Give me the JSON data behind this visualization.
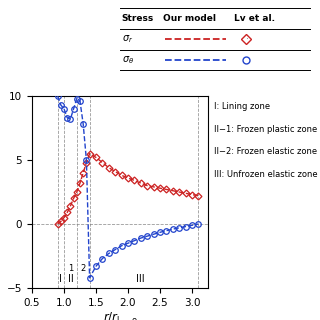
{
  "xlim": [
    0.5,
    3.25
  ],
  "ylim": [
    -5,
    10
  ],
  "yticks": [
    -5,
    0,
    5,
    10
  ],
  "xticks": [
    0.5,
    1.0,
    1.5,
    2.0,
    2.5,
    3.0
  ],
  "sigma_r_x": [
    0.9,
    0.95,
    1.0,
    1.05,
    1.1,
    1.15,
    1.2,
    1.25,
    1.3,
    1.35,
    1.4,
    1.5,
    1.6,
    1.7,
    1.8,
    1.9,
    2.0,
    2.1,
    2.2,
    2.3,
    2.4,
    2.5,
    2.6,
    2.7,
    2.8,
    2.9,
    3.0,
    3.1
  ],
  "sigma_r_y": [
    0.0,
    0.2,
    0.5,
    0.9,
    1.4,
    2.0,
    2.5,
    3.2,
    4.0,
    4.8,
    5.5,
    5.2,
    4.8,
    4.4,
    4.1,
    3.8,
    3.6,
    3.4,
    3.2,
    3.0,
    2.9,
    2.8,
    2.7,
    2.6,
    2.5,
    2.4,
    2.3,
    2.2
  ],
  "sigma_t_x": [
    0.9,
    0.95,
    1.0,
    1.05,
    1.1,
    1.15,
    1.2,
    1.25,
    1.3,
    1.35,
    1.4,
    1.5,
    1.6,
    1.7,
    1.8,
    1.9,
    2.0,
    2.1,
    2.2,
    2.3,
    2.4,
    2.5,
    2.6,
    2.7,
    2.8,
    2.9,
    3.0,
    3.1
  ],
  "sigma_t_y": [
    10.0,
    9.3,
    9.0,
    8.3,
    8.2,
    9.0,
    9.8,
    9.6,
    7.8,
    5.0,
    -4.2,
    -3.3,
    -2.7,
    -2.3,
    -2.0,
    -1.7,
    -1.5,
    -1.3,
    -1.1,
    -0.95,
    -0.8,
    -0.65,
    -0.52,
    -0.4,
    -0.3,
    -0.2,
    -0.1,
    0.0
  ],
  "vlines_x": [
    0.9,
    1.0,
    1.2,
    1.4,
    3.1
  ],
  "red_color": "#cc2222",
  "blue_color": "#2244cc",
  "annotations": [
    "I: Lining zone",
    "II−1: Frozen plastic zone",
    "II−2: Frozen elastic zone",
    "III: Unfrozen elastic zone"
  ],
  "table_headers": [
    "Stress",
    "Our model",
    "Lv et al."
  ],
  "row_labels": [
    "$\\sigma_r$",
    "$\\sigma_\\theta$"
  ]
}
